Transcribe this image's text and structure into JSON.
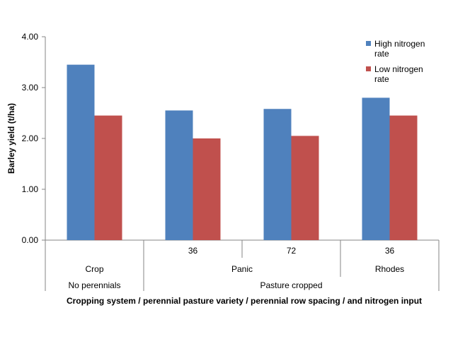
{
  "chart_data": {
    "type": "bar",
    "ylabel": "Barley yield (t/ha)",
    "xlabel": "Cropping system / perennial pasture variety / perennial row spacing / and nitrogen input",
    "ylim": [
      0,
      4
    ],
    "yticks": [
      "0.00",
      "1.00",
      "2.00",
      "3.00",
      "4.00"
    ],
    "grid": false,
    "legend_position": "top-right",
    "category_levels": {
      "row_spacing": [
        "",
        "36",
        "72",
        "36"
      ],
      "variety": [
        "Crop",
        "Panic",
        "Rhodes"
      ],
      "system": [
        "No perennials",
        "Pasture cropped"
      ]
    },
    "series": [
      {
        "name_lines": [
          "High nitrogen",
          "rate"
        ],
        "color": "#4f81bd",
        "values": [
          3.45,
          2.55,
          2.58,
          2.8
        ]
      },
      {
        "name_lines": [
          "Low nitrogen",
          "rate"
        ],
        "color": "#c0504d",
        "values": [
          2.45,
          2.0,
          2.05,
          2.45
        ]
      }
    ]
  }
}
